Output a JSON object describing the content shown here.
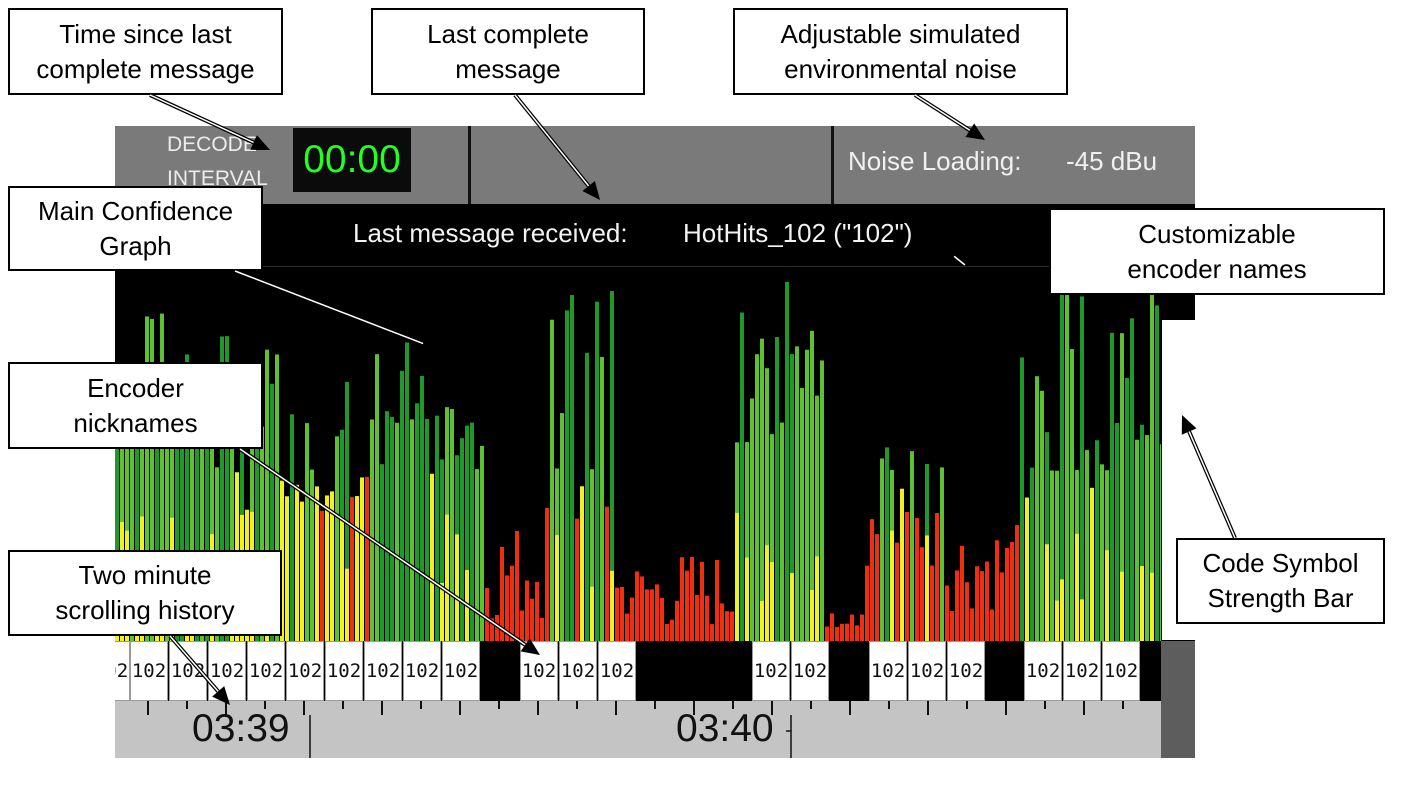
{
  "app": {
    "decode_interval_label": [
      "DECODE",
      "INTERVAL"
    ],
    "timer": "00:00",
    "noise_label": "Noise Loading:",
    "noise_value": "-45 dBu",
    "last_message_label": "Last message received:",
    "last_message_value": "HotHits_102 (\"102\")",
    "encoder_nickname": "102",
    "timeline_labels": [
      "03:39",
      "03:40"
    ]
  },
  "callouts": {
    "time_since": [
      "Time since last",
      "complete message"
    ],
    "last_complete": [
      "Last complete",
      "message"
    ],
    "noise": [
      "Adjustable simulated",
      "environmental noise"
    ],
    "main_graph": [
      "Main Confidence",
      "Graph"
    ],
    "encoder_names": [
      "Customizable",
      "encoder names"
    ],
    "nicknames": [
      "Encoder",
      "nicknames"
    ],
    "history": [
      "Two minute",
      "scrolling history"
    ],
    "strength_bar": [
      "Code Symbol",
      "Strength Bar"
    ]
  },
  "colors": {
    "timer_text": "#22ff22",
    "header_bg": "#7a7a7a",
    "bar_dark_green": "#1f9a2a",
    "bar_green": "#5dc130",
    "bar_yellow": "#f2f21a",
    "bar_red": "#ee3010"
  },
  "icons": [
    "arrow-icon"
  ]
}
